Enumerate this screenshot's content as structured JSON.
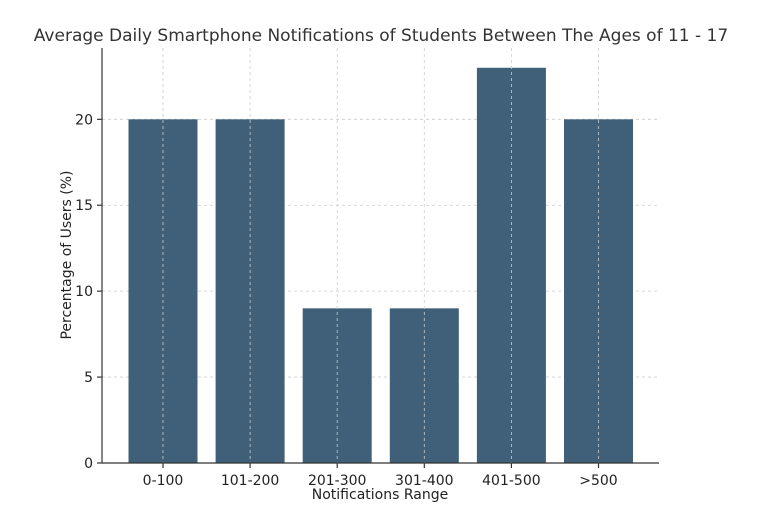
{
  "chart_data": {
    "type": "bar",
    "title": "Average Daily Smartphone Notifications of Students Between The Ages of 11 - 17",
    "xlabel": "Notifications Range",
    "ylabel": "Percentage of Users (%)",
    "categories": [
      "0-100",
      "101-200",
      "201-300",
      "301-400",
      "401-500",
      ">500"
    ],
    "values": [
      20,
      20,
      9,
      9,
      23,
      20
    ],
    "ylim": [
      0,
      24.15
    ],
    "yticks": [
      0,
      5,
      10,
      15,
      20
    ],
    "grid": true,
    "bar_color": "#3f6078"
  }
}
